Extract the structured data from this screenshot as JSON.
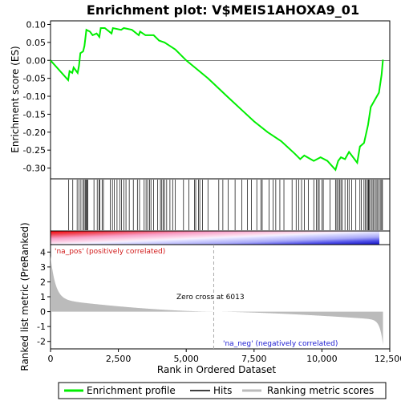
{
  "chart_data": {
    "type": "line",
    "title": "Enrichment plot: V$MEIS1AHOXA9_01",
    "xlabel": "Rank in Ordered Dataset",
    "ylabel_top": "Enrichment score (ES)",
    "ylabel_bottom": "Ranked list metric (PreRanked)",
    "x_range": [
      0,
      12500
    ],
    "x_ticks": [
      0,
      2500,
      5000,
      7500,
      10000,
      12500
    ],
    "x_tick_labels": [
      "0",
      "2,500",
      "5,000",
      "7,500",
      "10,000",
      "12,500"
    ],
    "es_ylim": [
      -0.33,
      0.11
    ],
    "es_ticks": [
      0.1,
      0.05,
      0.0,
      -0.05,
      -0.1,
      -0.15,
      -0.2,
      -0.25,
      -0.3
    ],
    "es_tick_labels": [
      "0.10",
      "0.05",
      "0.00",
      "-0.05",
      "-0.10",
      "-0.15",
      "-0.20",
      "-0.25",
      "-0.30"
    ],
    "metric_ylim": [
      -2.5,
      4.5
    ],
    "metric_ticks": [
      4,
      3,
      2,
      1,
      0,
      -1,
      -2
    ],
    "metric_tick_labels": [
      "4",
      "3",
      "2",
      "1",
      "0",
      "-1",
      "-2"
    ],
    "n_genes": 12250,
    "zero_cross": 6013,
    "zero_cross_label": "Zero cross at 6013",
    "pos_label": "'na_pos' (positively correlated)",
    "neg_label": "'na_neg' (negatively correlated)",
    "legend": [
      {
        "label": "Enrichment profile",
        "color": "#00ee00"
      },
      {
        "label": "Hits",
        "color": "#000000"
      },
      {
        "label": "Ranking metric scores",
        "color": "#bbbbbb"
      }
    ],
    "colors": {
      "es_line": "#00ee00",
      "hits": "#000000",
      "metric_fill": "#bbbbbb",
      "pos_label": "#d11a1a",
      "neg_label": "#1a1ad1",
      "zero_line": "#aaaaaa"
    },
    "es_profile": [
      [
        0,
        0.0
      ],
      [
        650,
        -0.055
      ],
      [
        700,
        -0.03
      ],
      [
        800,
        -0.035
      ],
      [
        850,
        -0.02
      ],
      [
        1000,
        -0.035
      ],
      [
        1050,
        -0.015
      ],
      [
        1100,
        0.02
      ],
      [
        1200,
        0.025
      ],
      [
        1250,
        0.04
      ],
      [
        1320,
        0.085
      ],
      [
        1450,
        0.08
      ],
      [
        1550,
        0.07
      ],
      [
        1700,
        0.075
      ],
      [
        1800,
        0.065
      ],
      [
        1850,
        0.09
      ],
      [
        2000,
        0.09
      ],
      [
        2250,
        0.075
      ],
      [
        2300,
        0.09
      ],
      [
        2600,
        0.085
      ],
      [
        2700,
        0.09
      ],
      [
        3000,
        0.085
      ],
      [
        3250,
        0.07
      ],
      [
        3300,
        0.08
      ],
      [
        3500,
        0.07
      ],
      [
        3800,
        0.07
      ],
      [
        4000,
        0.055
      ],
      [
        4200,
        0.05
      ],
      [
        4400,
        0.04
      ],
      [
        4600,
        0.03
      ],
      [
        5000,
        0.0
      ],
      [
        5400,
        -0.025
      ],
      [
        5800,
        -0.05
      ],
      [
        6013,
        -0.065
      ],
      [
        6500,
        -0.1
      ],
      [
        7000,
        -0.135
      ],
      [
        7500,
        -0.17
      ],
      [
        8000,
        -0.2
      ],
      [
        8500,
        -0.225
      ],
      [
        9000,
        -0.26
      ],
      [
        9200,
        -0.275
      ],
      [
        9350,
        -0.265
      ],
      [
        9700,
        -0.28
      ],
      [
        9950,
        -0.27
      ],
      [
        10200,
        -0.28
      ],
      [
        10500,
        -0.305
      ],
      [
        10600,
        -0.28
      ],
      [
        10700,
        -0.27
      ],
      [
        10850,
        -0.275
      ],
      [
        11000,
        -0.255
      ],
      [
        11300,
        -0.285
      ],
      [
        11400,
        -0.24
      ],
      [
        11550,
        -0.23
      ],
      [
        11700,
        -0.18
      ],
      [
        11800,
        -0.13
      ],
      [
        11950,
        -0.11
      ],
      [
        12100,
        -0.09
      ],
      [
        12200,
        -0.04
      ],
      [
        12250,
        0.002
      ]
    ],
    "hit_ranks": [
      670,
      820,
      980,
      1050,
      1120,
      1200,
      1240,
      1280,
      1310,
      1340,
      1370,
      1600,
      1720,
      1790,
      1820,
      1900,
      1950,
      2200,
      2280,
      2350,
      2450,
      2550,
      2620,
      2700,
      2780,
      2900,
      3050,
      3200,
      3280,
      3450,
      3520,
      3580,
      3650,
      3700,
      3800,
      3950,
      4050,
      4100,
      4150,
      4200,
      4280,
      4400,
      4500,
      4600,
      4900,
      5100,
      5300,
      5350,
      5450,
      5500,
      5600,
      5800,
      6200,
      6350,
      6550,
      6800,
      7050,
      7250,
      7400,
      7600,
      7750,
      7800,
      8050,
      8200,
      8300,
      8450,
      8600,
      8900,
      9050,
      9150,
      9250,
      9350,
      9500,
      9700,
      9800,
      9850,
      9900,
      10000,
      10050,
      10300,
      10500,
      10550,
      10600,
      10650,
      10700,
      10750,
      10850,
      10950,
      11000,
      11100,
      11250,
      11400,
      11450,
      11550,
      11600,
      11650,
      11700,
      11720,
      11750,
      11800,
      11850,
      11900,
      11950,
      12000,
      12050,
      12100,
      12150,
      12200,
      12230
    ]
  }
}
